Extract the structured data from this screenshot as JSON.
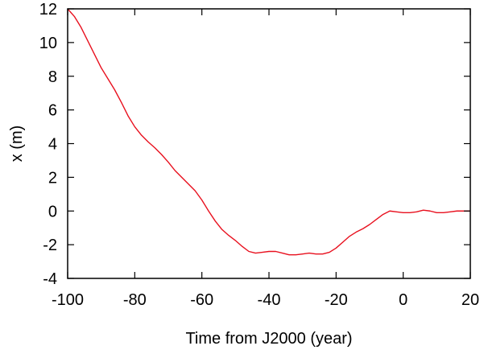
{
  "chart_data": {
    "type": "line",
    "title": "",
    "xlabel": "Time from J2000 (year)",
    "ylabel": "x (m)",
    "xlim": [
      -100,
      20
    ],
    "ylim": [
      -4,
      12
    ],
    "xticks": [
      -100,
      -80,
      -60,
      -40,
      -20,
      0,
      20
    ],
    "yticks": [
      -4,
      -2,
      0,
      2,
      4,
      6,
      8,
      10,
      12
    ],
    "grid": false,
    "legend": "none",
    "series": [
      {
        "color": "#e8101e",
        "x": [
          -100,
          -98,
          -96,
          -94,
          -92,
          -90,
          -88,
          -86,
          -84,
          -82,
          -80,
          -78,
          -76,
          -74,
          -72,
          -70,
          -68,
          -66,
          -64,
          -62,
          -60,
          -58,
          -56,
          -54,
          -52,
          -50,
          -48,
          -46,
          -44,
          -42,
          -40,
          -38,
          -36,
          -34,
          -32,
          -30,
          -28,
          -26,
          -24,
          -22,
          -20,
          -18,
          -16,
          -14,
          -12,
          -10,
          -8,
          -6,
          -4,
          -2,
          0,
          2,
          4,
          6,
          8,
          10,
          12,
          14,
          16,
          18,
          20
        ],
        "y": [
          12.0,
          11.55,
          10.9,
          10.1,
          9.3,
          8.5,
          7.85,
          7.2,
          6.45,
          5.65,
          5.0,
          4.5,
          4.1,
          3.75,
          3.35,
          2.9,
          2.4,
          2.0,
          1.6,
          1.2,
          0.65,
          0.0,
          -0.6,
          -1.1,
          -1.45,
          -1.75,
          -2.1,
          -2.4,
          -2.5,
          -2.45,
          -2.4,
          -2.4,
          -2.5,
          -2.6,
          -2.6,
          -2.55,
          -2.5,
          -2.55,
          -2.55,
          -2.45,
          -2.2,
          -1.85,
          -1.5,
          -1.25,
          -1.05,
          -0.8,
          -0.5,
          -0.2,
          0.0,
          -0.05,
          -0.1,
          -0.1,
          -0.05,
          0.05,
          0.0,
          -0.1,
          -0.1,
          -0.05,
          0.0,
          0.0,
          0.0
        ]
      }
    ]
  }
}
